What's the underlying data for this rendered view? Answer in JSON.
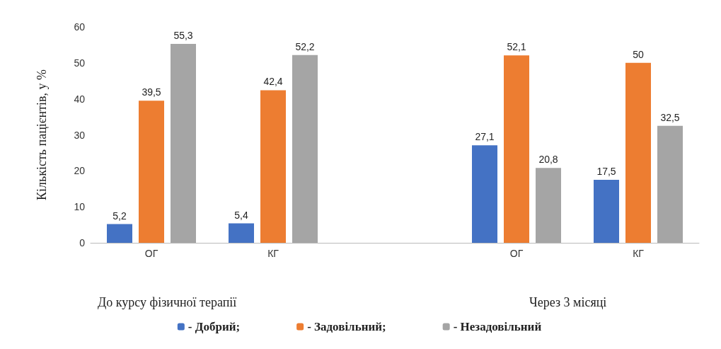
{
  "chart_data": {
    "type": "bar",
    "ylabel": "Кількість пацієнтів, у %",
    "categories": [
      "ОГ",
      "КГ",
      null,
      "ОГ",
      "КГ"
    ],
    "series": [
      {
        "name": "- Добрий;",
        "color": "#4472c4",
        "values": [
          5.2,
          5.4,
          null,
          27.1,
          17.5
        ],
        "value_labels": [
          "5,2",
          "5,4",
          null,
          "27,1",
          "17,5"
        ]
      },
      {
        "name": "- Задовільний;",
        "color": "#ed7d31",
        "values": [
          39.5,
          42.4,
          null,
          52.1,
          50
        ],
        "value_labels": [
          "39,5",
          "42,4",
          null,
          "52,1",
          "50"
        ]
      },
      {
        "name": "- Незадовільний",
        "color": "#a5a5a5",
        "values": [
          55.3,
          52.2,
          null,
          20.8,
          32.5
        ],
        "value_labels": [
          "55,3",
          "52,2",
          null,
          "20,8",
          "32,5"
        ]
      }
    ],
    "ylim": [
      0,
      60
    ],
    "yticks": [
      0,
      10,
      20,
      30,
      40,
      50,
      60
    ],
    "grid": false,
    "legend": "bottom",
    "annotations": [
      "До курсу фізичної терапії",
      "Через 3 місяці"
    ]
  }
}
